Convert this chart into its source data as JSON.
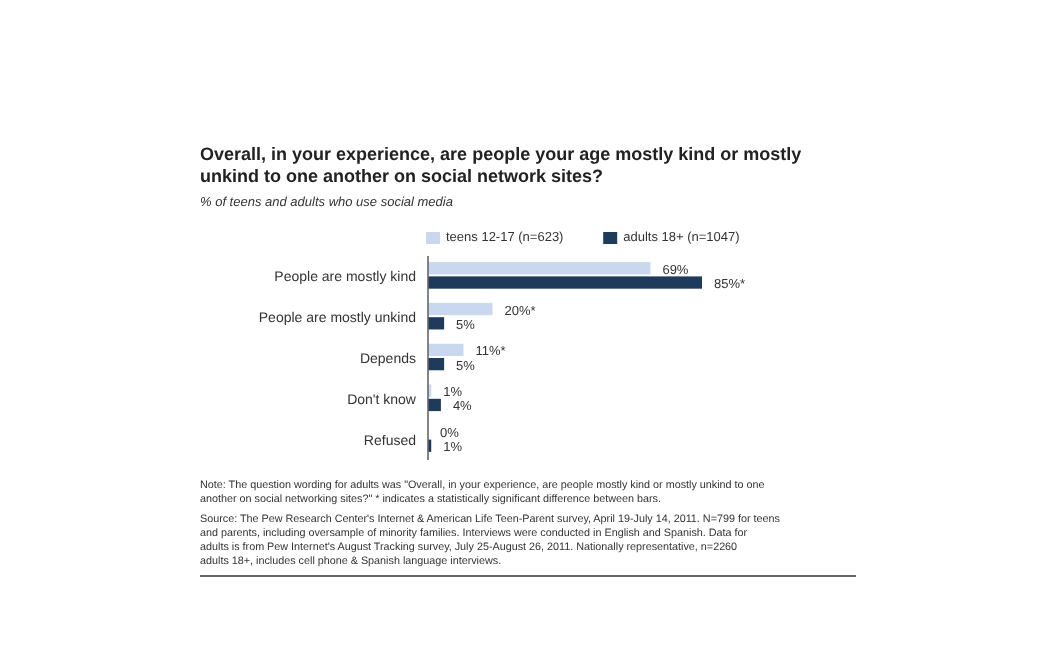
{
  "chart_data": {
    "type": "bar",
    "orientation": "horizontal",
    "title": "Overall, in your experience, are people your age mostly kind or mostly unkind to one another on social network sites?",
    "subtitle": "% of teens and adults who use social media",
    "categories": [
      "People are mostly kind",
      "People are mostly unkind",
      "Depends",
      "Don't know",
      "Refused"
    ],
    "series": [
      {
        "name": "teens 12-17 (n=623)",
        "color": "#c9d7ef",
        "values": [
          69,
          20,
          11,
          1,
          0
        ],
        "value_labels": [
          "69%",
          "20%*",
          "11%*",
          "1%",
          "0%"
        ]
      },
      {
        "name": "adults 18+ (n=1047)",
        "color": "#1f3b5c",
        "values": [
          85,
          5,
          5,
          4,
          1
        ],
        "value_labels": [
          "85%*",
          "5%",
          "5%",
          "4%",
          "1%"
        ]
      }
    ],
    "legend": "top",
    "grid": false,
    "annotations": [
      "Note: The question wording for adults was \"Overall, in your experience, are people mostly kind or mostly unkind to one another on social networking sites?\" * indicates a statistically significant difference between bars.",
      "Source: The Pew Research Center's Internet & American Life Teen-Parent survey, April 19-July 14, 2011. N=799 for teens and parents, including oversample of minority families. Interviews were conducted in English and Spanish. Data for adults is from Pew Internet's August Tracking survey, July 25-August 26, 2011. Nationally representative, n=2260 adults 18+, includes cell phone & Spanish language interviews."
    ]
  }
}
